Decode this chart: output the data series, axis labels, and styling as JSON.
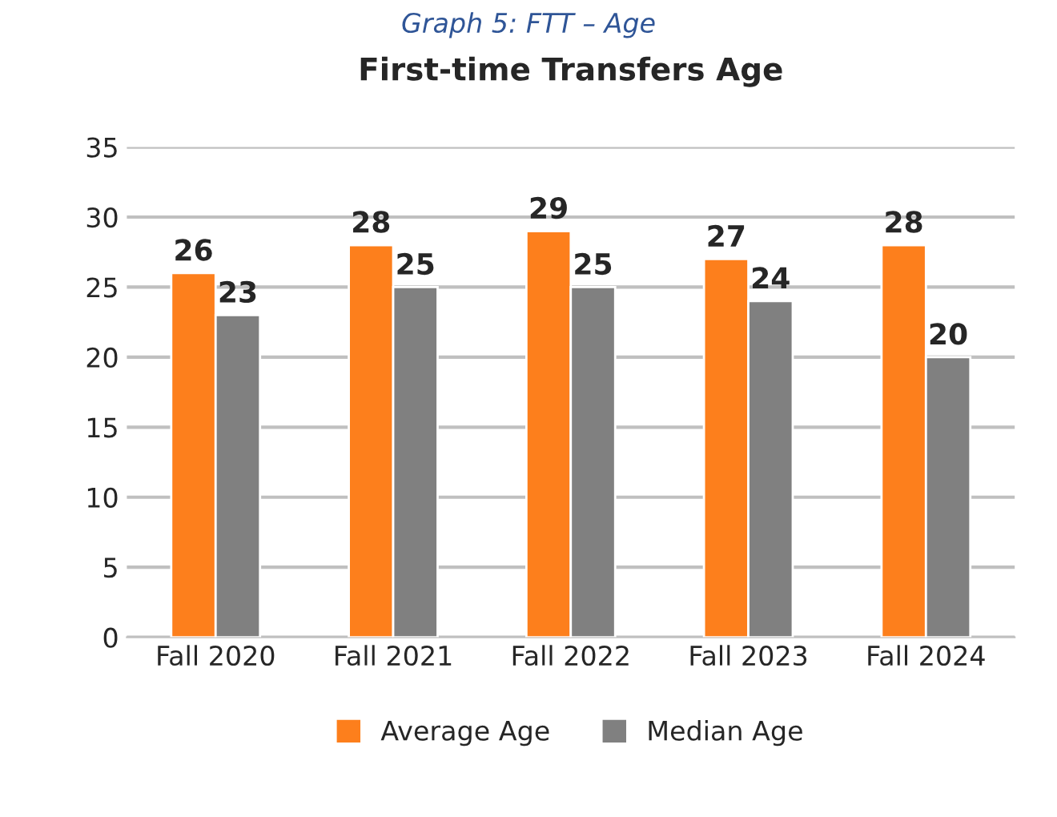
{
  "chart_data": {
    "type": "bar",
    "title": "First-time Transfers Age",
    "annotations": [
      "Graph 5: FTT – Age"
    ],
    "categories": [
      "Fall 2020",
      "Fall 2021",
      "Fall 2022",
      "Fall 2023",
      "Fall 2024"
    ],
    "series": [
      {
        "name": "Average Age",
        "color": "#fd7f1c",
        "values": [
          26,
          28,
          29,
          27,
          28
        ]
      },
      {
        "name": "Median Age",
        "color": "#808080",
        "values": [
          23,
          25,
          25,
          24,
          20
        ]
      }
    ],
    "ylim": [
      0,
      35
    ],
    "yticks": [
      0,
      5,
      10,
      15,
      20,
      25,
      30,
      35
    ],
    "grid": "y",
    "legend": "bottom",
    "data_labels": true
  }
}
